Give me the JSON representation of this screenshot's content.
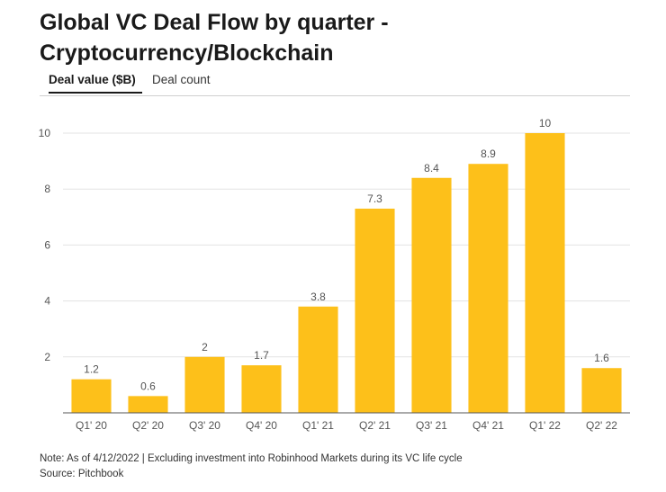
{
  "title": "Global VC Deal Flow by quarter - Cryptocurrency/Blockchain",
  "tabs": {
    "active": "Deal value ($B)",
    "inactive": "Deal count"
  },
  "colors": {
    "bar": "#FDC01A",
    "grid": "#e3e3e3",
    "axis": "#555555",
    "text": "#555555"
  },
  "chart_data": {
    "type": "bar",
    "title": "Global VC Deal Flow by quarter - Cryptocurrency/Blockchain",
    "xlabel": "",
    "ylabel": "Deal value ($B)",
    "categories": [
      "Q1' 20",
      "Q2' 20",
      "Q3' 20",
      "Q4' 20",
      "Q1' 21",
      "Q2' 21",
      "Q3' 21",
      "Q4' 21",
      "Q1' 22",
      "Q2' 22"
    ],
    "values": [
      1.2,
      0.6,
      2,
      1.7,
      3.8,
      7.3,
      8.4,
      8.9,
      10,
      1.6
    ],
    "value_labels": [
      "1.2",
      "0.6",
      "2",
      "1.7",
      "3.8",
      "7.3",
      "8.4",
      "8.9",
      "10",
      "1.6"
    ],
    "ylim": [
      0,
      10
    ],
    "yticks": [
      "2",
      "4",
      "6",
      "8",
      "10"
    ],
    "grid": true
  },
  "footer": {
    "note": "Note: As of 4/12/2022 | Excluding investment into Robinhood Markets during its VC life cycle",
    "source": "Source: Pitchbook"
  }
}
